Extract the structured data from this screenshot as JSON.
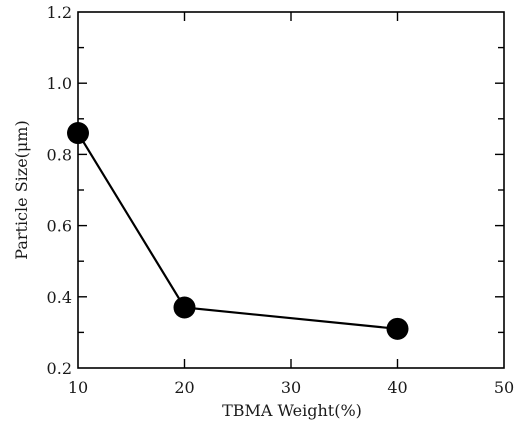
{
  "chart_data": {
    "type": "line",
    "title": "",
    "xlabel": "TBMA Weight(%)",
    "ylabel": "Particle Size(μm)",
    "xlim": [
      10,
      50
    ],
    "ylim": [
      0.2,
      1.2
    ],
    "xticks": [
      10,
      20,
      30,
      40,
      50
    ],
    "yticks": [
      0.2,
      0.4,
      0.6,
      0.8,
      1.0,
      1.2
    ],
    "xtick_labels": [
      "10",
      "20",
      "30",
      "40",
      "50"
    ],
    "ytick_labels": [
      "0.2",
      "0.4",
      "0.6",
      "0.8",
      "1.0",
      "1.2"
    ],
    "grid": false,
    "series": [
      {
        "x": [
          10,
          20,
          40
        ],
        "y": [
          0.86,
          0.37,
          0.31
        ],
        "color": "#000000",
        "marker": "filled-circle"
      }
    ]
  }
}
